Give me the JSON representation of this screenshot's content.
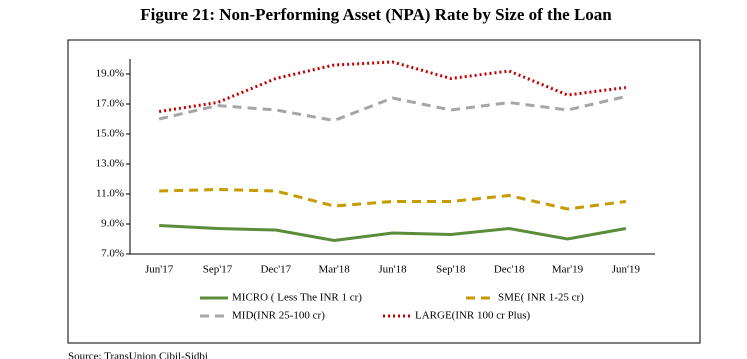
{
  "chart_data": {
    "type": "line",
    "title": "Figure 21: Non-Performing Asset (NPA) Rate by Size of the Loan",
    "categories": [
      "Jun'17",
      "Sep'17",
      "Dec'17",
      "Mar'18",
      "Jun'18",
      "Sep'18",
      "Dec'18",
      "Mar'19",
      "Jun'19"
    ],
    "series": [
      {
        "name": "MICRO ( Less The INR 1 cr)",
        "color": "#5b8c3a",
        "dash": "solid",
        "values": [
          8.9,
          8.7,
          8.6,
          7.9,
          8.4,
          8.3,
          8.7,
          8.0,
          8.7
        ]
      },
      {
        "name": "SME( INR 1-25 cr)",
        "color": "#c79a00",
        "dash": "dashed",
        "values": [
          11.2,
          11.3,
          11.2,
          10.2,
          10.5,
          10.5,
          10.9,
          10.0,
          10.5
        ]
      },
      {
        "name": "MID(INR 25-100 cr)",
        "color": "#a6a6a6",
        "dash": "dashed",
        "values": [
          16.0,
          16.9,
          16.6,
          15.9,
          17.4,
          16.6,
          17.1,
          16.6,
          17.5
        ]
      },
      {
        "name": "LARGE(INR 100 cr Plus)",
        "color": "#c00000",
        "dash": "dotted",
        "values": [
          16.5,
          17.1,
          18.7,
          19.6,
          19.8,
          18.7,
          19.2,
          17.6,
          18.1
        ]
      }
    ],
    "ylim": [
      7,
      20
    ],
    "yticks": [
      {
        "value": 7,
        "label": "7.0%"
      },
      {
        "value": 9,
        "label": "9.0%"
      },
      {
        "value": 11,
        "label": "11.0%"
      },
      {
        "value": 13,
        "label": "13.0%"
      },
      {
        "value": 15,
        "label": "15.0%"
      },
      {
        "value": 17,
        "label": "17.0%"
      },
      {
        "value": 19,
        "label": "19.0%"
      }
    ],
    "source": "Source: TransUnion Cibil-Sidbi"
  }
}
